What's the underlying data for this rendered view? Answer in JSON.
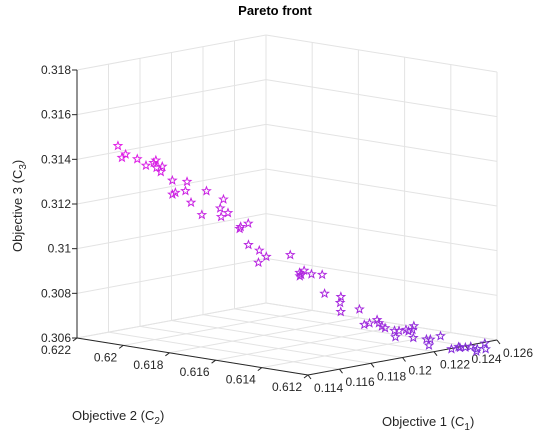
{
  "chart_data": {
    "type": "scatter",
    "projection": "3d",
    "title": "Pareto front",
    "xlabel": {
      "text": "Objective 1 (C",
      "sub": "1",
      "close": ")"
    },
    "ylabel": {
      "text": "Objective 2 (C",
      "sub": "2",
      "close": ")"
    },
    "zlabel": {
      "text": "Objective 3 (C",
      "sub": "3",
      "close": ")"
    },
    "xlim": [
      0.114,
      0.126
    ],
    "ylim": [
      0.612,
      0.622
    ],
    "zlim": [
      0.306,
      0.318
    ],
    "xticks": [
      "0.114",
      "0.116",
      "0.118",
      "0.12",
      "0.122",
      "0.124",
      "0.126"
    ],
    "yticks": [
      "0.612",
      "0.614",
      "0.616",
      "0.618",
      "0.62",
      "0.622"
    ],
    "zticks": [
      "0.306",
      "0.308",
      "0.31",
      "0.312",
      "0.314",
      "0.316",
      "0.318"
    ],
    "grid": true,
    "marker": "pentagram",
    "series": [
      {
        "colors": [
          "#e11ee6",
          "#7b2fd8"
        ],
        "x": [
          0.1144,
          0.1143,
          0.1146,
          0.1148,
          0.1149,
          0.1152,
          0.1153,
          0.1148,
          0.1158,
          0.1156,
          0.116,
          0.1158,
          0.1157,
          0.1159,
          0.1161,
          0.1165,
          0.1164,
          0.1167,
          0.1165,
          0.1164,
          0.1167,
          0.1162,
          0.1167,
          0.1171,
          0.1175,
          0.1178,
          0.1176,
          0.1177,
          0.1181,
          0.1183,
          0.1183,
          0.1186,
          0.1187,
          0.1193,
          0.1192,
          0.1195,
          0.1196,
          0.1199,
          0.1196,
          0.1202,
          0.12,
          0.12,
          0.1204,
          0.1206,
          0.1208,
          0.1211,
          0.1207,
          0.1208,
          0.1211,
          0.1214,
          0.1216,
          0.1217,
          0.1221,
          0.1219,
          0.1223,
          0.1224,
          0.1225,
          0.123,
          0.123,
          0.1234,
          0.1235,
          0.1236,
          0.1237,
          0.124,
          0.1241,
          0.1242,
          0.1244,
          0.1246
        ],
        "y": [
          0.6205,
          0.6201,
          0.6198,
          0.6206,
          0.6192,
          0.6195,
          0.6199,
          0.6191,
          0.6196,
          0.6194,
          0.6186,
          0.6191,
          0.6189,
          0.6186,
          0.6193,
          0.6181,
          0.6187,
          0.6175,
          0.6183,
          0.6171,
          0.6176,
          0.6173,
          0.6168,
          0.6167,
          0.6173,
          0.6167,
          0.6166,
          0.6171,
          0.6166,
          0.6157,
          0.6151,
          0.6155,
          0.6155,
          0.615,
          0.6159,
          0.6156,
          0.6151,
          0.6146,
          0.6144,
          0.614,
          0.6147,
          0.6131,
          0.6137,
          0.6133,
          0.6142,
          0.6129,
          0.6135,
          0.6133,
          0.6126,
          0.6133,
          0.6126,
          0.6129,
          0.613,
          0.6136,
          0.6131,
          0.6126,
          0.6125,
          0.6124,
          0.6129,
          0.6122,
          0.6119,
          0.6115,
          0.6118,
          0.6123,
          0.6116,
          0.6113,
          0.6114,
          0.6119
        ],
        "z": [
          0.3148,
          0.3145,
          0.3143,
          0.3142,
          0.3143,
          0.3141,
          0.3139,
          0.314,
          0.3136,
          0.3139,
          0.3133,
          0.3133,
          0.3128,
          0.3129,
          0.3126,
          0.3129,
          0.3123,
          0.3126,
          0.3118,
          0.3121,
          0.3118,
          0.3123,
          0.3114,
          0.3116,
          0.3113,
          0.3103,
          0.3098,
          0.3105,
          0.31,
          0.3102,
          0.3096,
          0.3094,
          0.3093,
          0.3093,
          0.3091,
          0.3092,
          0.3084,
          0.3083,
          0.3077,
          0.3078,
          0.308,
          0.3075,
          0.3072,
          0.3071,
          0.307,
          0.3069,
          0.3072,
          0.307,
          0.307,
          0.3068,
          0.3071,
          0.3068,
          0.3068,
          0.3064,
          0.3064,
          0.3064,
          0.3064,
          0.3065,
          0.306,
          0.3059,
          0.306,
          0.3061,
          0.306,
          0.3059,
          0.3058,
          0.3062,
          0.3059,
          0.3058
        ]
      }
    ]
  }
}
